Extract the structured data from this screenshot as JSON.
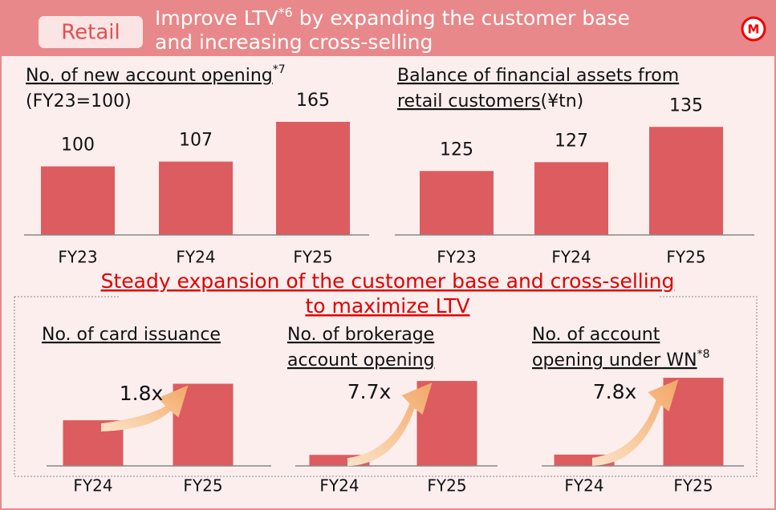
{
  "header": {
    "tag": "Retail",
    "title_start": "Improve LTV",
    "title_note": "*6",
    "title_end": " by expanding the customer base",
    "title_line2": "and increasing cross-selling"
  },
  "message": [
    "Steady expansion of the customer base and cross-selling",
    "to maximize LTV"
  ],
  "chart_data": [
    {
      "type": "bar",
      "title": [
        "No. of new account opening"
      ],
      "title_note": "*7",
      "subtitle": "(FY23=100)",
      "categories": [
        "FY23",
        "FY24",
        "FY25"
      ],
      "values": [
        100,
        107,
        165
      ],
      "color": "#dd5c5f",
      "ylim": [
        0,
        193
      ]
    },
    {
      "type": "bar",
      "title": [
        "Balance of financial assets from",
        "retail customers"
      ],
      "unit": "(¥tn)",
      "categories": [
        "FY23",
        "FY24",
        "FY25"
      ],
      "values": [
        125,
        127,
        135
      ],
      "color": "#dd5c5f",
      "ylim": [
        110.5,
        140.5
      ]
    },
    {
      "type": "bar",
      "title": [
        "No. of card issuance"
      ],
      "annotation": "1.8x",
      "categories": [
        "FY24",
        "FY25"
      ],
      "values": [
        1,
        1.8
      ],
      "color": "#dd5c5f",
      "ylim": [
        0,
        1.95
      ]
    },
    {
      "type": "bar",
      "title": [
        "No. of brokerage",
        "account opening"
      ],
      "annotation": "7.7x",
      "categories": [
        "FY24",
        "FY25"
      ],
      "values": [
        1,
        7.7
      ],
      "color": "#dd5c5f",
      "ylim": [
        0,
        7.85
      ]
    },
    {
      "type": "bar",
      "title": [
        "No. of account",
        "opening under WN"
      ],
      "title_note": "*8",
      "annotation": "7.8x",
      "categories": [
        "FY24",
        "FY25"
      ],
      "values": [
        1,
        7.8
      ],
      "color": "#dd5c5f",
      "ylim": [
        0,
        7.95
      ]
    }
  ]
}
